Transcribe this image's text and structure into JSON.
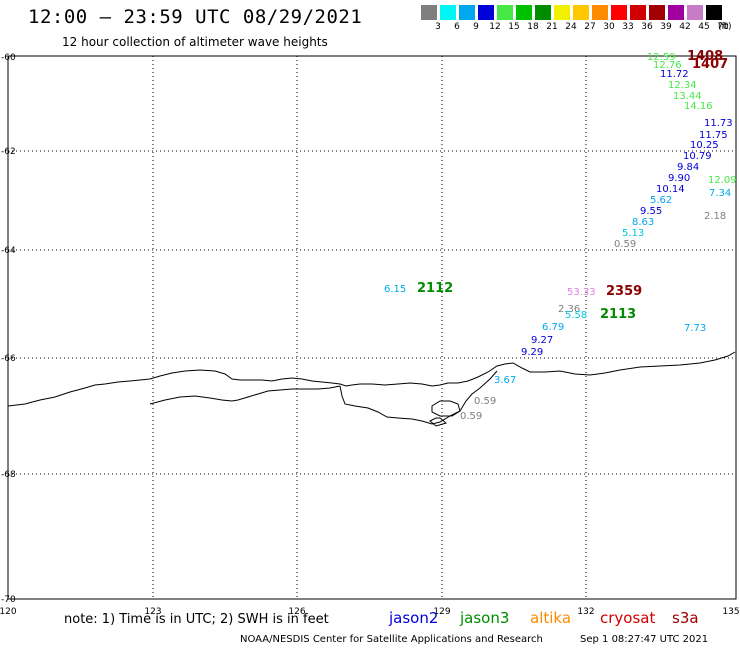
{
  "header": {
    "title": "12:00 – 23:59 UTC 08/29/2021",
    "subtitle": "12 hour collection of altimeter wave heights"
  },
  "color_scale": {
    "unit": "(ft)",
    "bins": [
      {
        "label": "3",
        "color": "#7f7f7f"
      },
      {
        "label": "6",
        "color": "#00f5f5"
      },
      {
        "label": "9",
        "color": "#00a8f0"
      },
      {
        "label": "12",
        "color": "#0000d8"
      },
      {
        "label": "15",
        "color": "#45e845"
      },
      {
        "label": "18",
        "color": "#00c000"
      },
      {
        "label": "21",
        "color": "#008c00"
      },
      {
        "label": "24",
        "color": "#f0f000"
      },
      {
        "label": "27",
        "color": "#ffc800"
      },
      {
        "label": "30",
        "color": "#ff8c00"
      },
      {
        "label": "33",
        "color": "#ff0000"
      },
      {
        "label": "36",
        "color": "#d00000"
      },
      {
        "label": "39",
        "color": "#a00000"
      },
      {
        "label": "42",
        "color": "#a000a0"
      },
      {
        "label": "45",
        "color": "#c87cc8"
      },
      {
        "label": "70",
        "color": "#000000"
      }
    ]
  },
  "axes": {
    "longitude_labels": [
      "120",
      "123",
      "126",
      "129",
      "132",
      "135"
    ],
    "latitude_labels": [
      "-60",
      "-62",
      "-64",
      "-66",
      "-68",
      "-70"
    ]
  },
  "observations": [
    {
      "text": "12.59",
      "color": "#45e845"
    },
    {
      "text": "1408",
      "color": "#8b0000"
    },
    {
      "text": "12.76",
      "color": "#45e845"
    },
    {
      "text": "1407",
      "color": "#8b0000"
    },
    {
      "text": "11.72",
      "color": "#0000d8"
    },
    {
      "text": "12.34",
      "color": "#45e845"
    },
    {
      "text": "13.44",
      "color": "#45e845"
    },
    {
      "text": "14.16",
      "color": "#45e845"
    },
    {
      "text": "11.73",
      "color": "#0000d8"
    },
    {
      "text": "11.75",
      "color": "#0000d8"
    },
    {
      "text": "10.25",
      "color": "#0000d8"
    },
    {
      "text": "10.79",
      "color": "#0000d8"
    },
    {
      "text": "9.84",
      "color": "#0000d8"
    },
    {
      "text": "9.90",
      "color": "#0000d8"
    },
    {
      "text": "10.14",
      "color": "#0000d8"
    },
    {
      "text": "12.09",
      "color": "#45e845"
    },
    {
      "text": "7.34",
      "color": "#00a8f0"
    },
    {
      "text": "5.62",
      "color": "#00a8f0"
    },
    {
      "text": "2.18",
      "color": "#7f7f7f"
    },
    {
      "text": "9.55",
      "color": "#0000d8"
    },
    {
      "text": "8.63",
      "color": "#00a8f0"
    },
    {
      "text": "5.13",
      "color": "#00c8e0"
    },
    {
      "text": "0.59",
      "color": "#7f7f7f"
    },
    {
      "text": "6.15",
      "color": "#00a8f0"
    },
    {
      "text": "2112",
      "color": "#008c00"
    },
    {
      "text": "53.33",
      "color": "#e080e0"
    },
    {
      "text": "2359",
      "color": "#8b0000"
    },
    {
      "text": "2.36",
      "color": "#7f7f7f"
    },
    {
      "text": "5.58",
      "color": "#00c8e0"
    },
    {
      "text": "2113",
      "color": "#008c00"
    },
    {
      "text": "6.79",
      "color": "#00a8f0"
    },
    {
      "text": "7.73",
      "color": "#00a8f0"
    },
    {
      "text": "9.27",
      "color": "#0000d8"
    },
    {
      "text": "9.29",
      "color": "#0000d8"
    },
    {
      "text": "3.67",
      "color": "#00a8f0"
    },
    {
      "text": "0.59",
      "color": "#7f7f7f"
    },
    {
      "text": "0.59",
      "color": "#7f7f7f"
    }
  ],
  "footer": {
    "note": "note: 1) Time is in UTC; 2) SWH is in feet",
    "satellites": [
      {
        "name": "jason2",
        "color": "#0000d8"
      },
      {
        "name": "jason3",
        "color": "#008c00"
      },
      {
        "name": "altika",
        "color": "#ff8c00"
      },
      {
        "name": "cryosat",
        "color": "#d00000"
      },
      {
        "name": "s3a",
        "color": "#a00000"
      }
    ],
    "credit": "NOAA/NESDIS Center for Satellite Applications and Research",
    "timestamp": "Sep  1 08:27:47 UTC 2021"
  }
}
